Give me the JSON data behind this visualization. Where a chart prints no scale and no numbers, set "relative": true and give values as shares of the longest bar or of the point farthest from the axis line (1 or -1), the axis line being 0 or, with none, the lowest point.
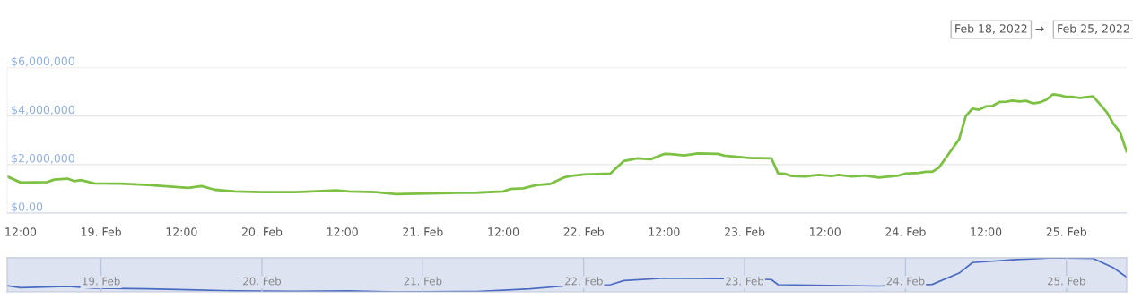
{
  "chart_data": [
    {
      "type": "line",
      "x": [
        "2022-02-18T10:00",
        "2022-02-18T12:00",
        "2022-02-18T16:00",
        "2022-02-18T17:00",
        "2022-02-18T19:00",
        "2022-02-18T20:00",
        "2022-02-18T21:00",
        "2022-02-18T23:00",
        "2022-02-19T03:00",
        "2022-02-19T07:00",
        "2022-02-19T13:00",
        "2022-02-19T15:00",
        "2022-02-19T17:00",
        "2022-02-19T20:00",
        "2022-02-20T00:00",
        "2022-02-20T05:00",
        "2022-02-20T09:00",
        "2022-02-20T11:00",
        "2022-02-20T13:00",
        "2022-02-20T17:00",
        "2022-02-20T20:00",
        "2022-02-21T04:00",
        "2022-02-21T08:00",
        "2022-02-21T12:00",
        "2022-02-21T13:00",
        "2022-02-21T15:00",
        "2022-02-21T17:00",
        "2022-02-21T19:00",
        "2022-02-21T21:00",
        "2022-02-21T22:00",
        "2022-02-22T00:00",
        "2022-02-22T04:00",
        "2022-02-22T06:00",
        "2022-02-22T08:00",
        "2022-02-22T10:00",
        "2022-02-22T12:00",
        "2022-02-22T13:00",
        "2022-02-22T15:00",
        "2022-02-22T17:00",
        "2022-02-22T20:00",
        "2022-02-22T21:00",
        "2022-02-23T01:00",
        "2022-02-23T02:00",
        "2022-02-23T04:00",
        "2022-02-23T05:00",
        "2022-02-23T06:00",
        "2022-02-23T07:00",
        "2022-02-23T09:00",
        "2022-02-23T11:00",
        "2022-02-23T13:00",
        "2022-02-23T14:00",
        "2022-02-23T16:00",
        "2022-02-23T18:00",
        "2022-02-23T20:00",
        "2022-02-23T23:00",
        "2022-02-24T00:00",
        "2022-02-24T02:00",
        "2022-02-24T03:00",
        "2022-02-24T04:00",
        "2022-02-24T05:00",
        "2022-02-24T06:00",
        "2022-02-24T08:00",
        "2022-02-24T09:00",
        "2022-02-24T10:00",
        "2022-02-24T11:00",
        "2022-02-24T12:00",
        "2022-02-24T13:00",
        "2022-02-24T14:00",
        "2022-02-24T15:00",
        "2022-02-24T16:00",
        "2022-02-24T17:00",
        "2022-02-24T18:00",
        "2022-02-24T19:00",
        "2022-02-24T20:00",
        "2022-02-24T21:00",
        "2022-02-24T22:00",
        "2022-02-24T23:00",
        "2022-02-25T00:00",
        "2022-02-25T01:00",
        "2022-02-25T02:00",
        "2022-02-25T04:00",
        "2022-02-25T05:00",
        "2022-02-25T06:00",
        "2022-02-25T07:00",
        "2022-02-25T08:00",
        "2022-02-25T09:00"
      ],
      "series": [
        {
          "color": "#7cc142",
          "values": [
            1510000,
            1260000,
            1280000,
            1380000,
            1420000,
            1320000,
            1360000,
            1220000,
            1210000,
            1160000,
            1040000,
            1110000,
            960000,
            890000,
            860000,
            860000,
            910000,
            940000,
            890000,
            860000,
            780000,
            830000,
            840000,
            890000,
            990000,
            1020000,
            1160000,
            1200000,
            1460000,
            1530000,
            1590000,
            1630000,
            2150000,
            2260000,
            2220000,
            2440000,
            2430000,
            2380000,
            2460000,
            2440000,
            2370000,
            2270000,
            2270000,
            2260000,
            1640000,
            1620000,
            1530000,
            1510000,
            1570000,
            1530000,
            1570000,
            1510000,
            1550000,
            1460000,
            1550000,
            1630000,
            1660000,
            1700000,
            1700000,
            1880000,
            2270000,
            3040000,
            4000000,
            4310000,
            4260000,
            4400000,
            4420000,
            4580000,
            4590000,
            4640000,
            4600000,
            4630000,
            4520000,
            4560000,
            4670000,
            4900000,
            4860000,
            4790000,
            4790000,
            4750000,
            4810000,
            4490000,
            4170000,
            3690000,
            3340000,
            2540000
          ]
        }
      ],
      "xlim": [
        "2022-02-18T10:00",
        "2022-02-25T09:00"
      ],
      "xticks": [
        {
          "value": "2022-02-18T12:00",
          "label": "12:00"
        },
        {
          "value": "2022-02-19T00:00",
          "label": "19. Feb"
        },
        {
          "value": "2022-02-19T12:00",
          "label": "12:00"
        },
        {
          "value": "2022-02-20T00:00",
          "label": "20. Feb"
        },
        {
          "value": "2022-02-20T12:00",
          "label": "12:00"
        },
        {
          "value": "2022-02-21T00:00",
          "label": "21. Feb"
        },
        {
          "value": "2022-02-21T12:00",
          "label": "12:00"
        },
        {
          "value": "2022-02-22T00:00",
          "label": "22. Feb"
        },
        {
          "value": "2022-02-22T12:00",
          "label": "12:00"
        },
        {
          "value": "2022-02-23T00:00",
          "label": "23. Feb"
        },
        {
          "value": "2022-02-23T12:00",
          "label": "12:00"
        },
        {
          "value": "2022-02-24T00:00",
          "label": "24. Feb"
        },
        {
          "value": "2022-02-24T12:00",
          "label": "12:00"
        },
        {
          "value": "2022-02-25T00:00",
          "label": "25. Feb"
        }
      ],
      "ylim": [
        0,
        6000000
      ],
      "yticks": [
        {
          "value": 0,
          "label": "$0.00"
        },
        {
          "value": 2000000,
          "label": "$2,000,000"
        },
        {
          "value": 4000000,
          "label": "$4,000,000"
        },
        {
          "value": 6000000,
          "label": "$6,000,000"
        }
      ],
      "grid": "y",
      "annotations": [
        "Feb 18, 2022",
        "→",
        "Feb 25, 2022"
      ]
    },
    {
      "type": "line",
      "relative": true,
      "x": [
        "2022-02-18T10:00",
        "2022-02-18T12:00",
        "2022-02-18T19:00",
        "2022-02-18T23:00",
        "2022-02-19T07:00",
        "2022-02-19T13:00",
        "2022-02-19T20:00",
        "2022-02-20T05:00",
        "2022-02-20T13:00",
        "2022-02-20T20:00",
        "2022-02-21T08:00",
        "2022-02-21T16:00",
        "2022-02-21T21:00",
        "2022-02-22T04:00",
        "2022-02-22T06:00",
        "2022-02-22T12:00",
        "2022-02-22T21:00",
        "2022-02-23T04:00",
        "2022-02-23T05:00",
        "2022-02-23T20:00",
        "2022-02-24T04:00",
        "2022-02-24T08:00",
        "2022-02-24T10:00",
        "2022-02-24T16:00",
        "2022-02-24T22:00",
        "2022-02-25T04:00",
        "2022-02-25T07:00",
        "2022-02-25T09:00"
      ],
      "series": [
        {
          "color": "#4a6bc2",
          "values": [
            0.18,
            0.12,
            0.16,
            0.11,
            0.09,
            0.06,
            0.03,
            0.02,
            0.03,
            0,
            0.01,
            0.09,
            0.17,
            0.21,
            0.33,
            0.4,
            0.39,
            0.36,
            0.21,
            0.17,
            0.22,
            0.55,
            0.86,
            0.94,
            1,
            0.98,
            0.71,
            0.43
          ]
        }
      ],
      "xlim": [
        "2022-02-18T10:00",
        "2022-02-25T09:00"
      ],
      "xticks": [
        {
          "value": "2022-02-19T00:00",
          "label": "19. Feb"
        },
        {
          "value": "2022-02-20T00:00",
          "label": "20. Feb"
        },
        {
          "value": "2022-02-21T00:00",
          "label": "21. Feb"
        },
        {
          "value": "2022-02-22T00:00",
          "label": "22. Feb"
        },
        {
          "value": "2022-02-23T00:00",
          "label": "23. Feb"
        },
        {
          "value": "2022-02-24T00:00",
          "label": "24. Feb"
        },
        {
          "value": "2022-02-25T00:00",
          "label": "25. Feb"
        }
      ],
      "grid": "x",
      "tick_labels": "x"
    }
  ]
}
